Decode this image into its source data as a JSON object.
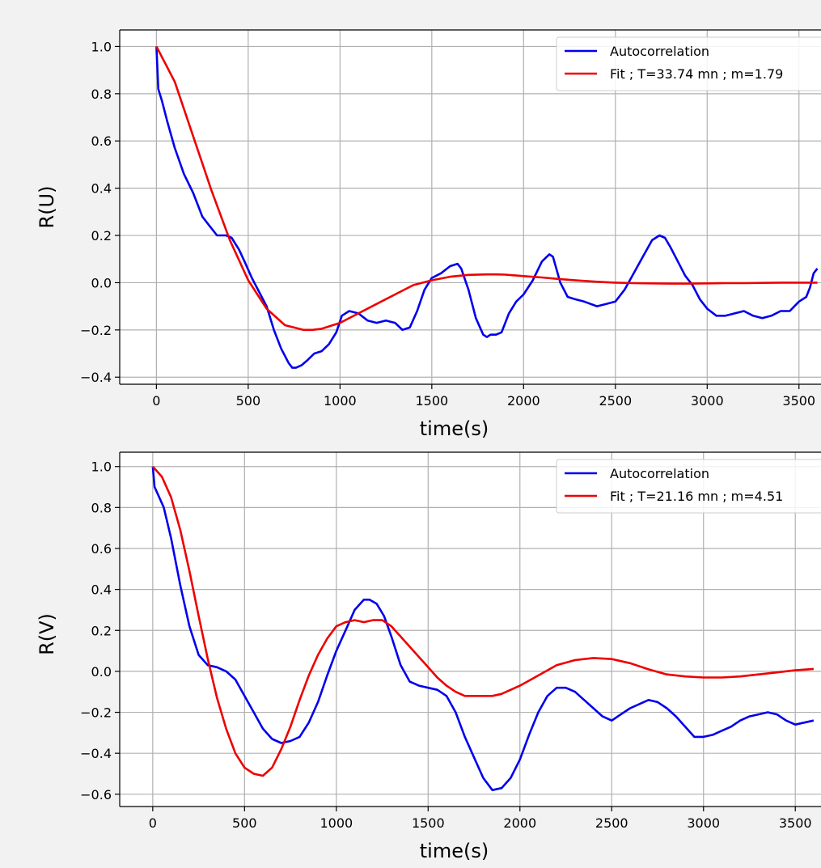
{
  "chart_data": [
    {
      "type": "line",
      "xlabel": "time(s)",
      "ylabel": "R(U)",
      "xlim": [
        -200,
        3620
      ],
      "ylim": [
        -0.43,
        1.07
      ],
      "xticks": [
        0,
        500,
        1000,
        1500,
        2000,
        2500,
        3000,
        3500
      ],
      "xtick_labels": [
        "0",
        "500",
        "1000",
        "1500",
        "2000",
        "2500",
        "3000",
        "3500"
      ],
      "yticks": [
        -0.4,
        -0.2,
        0.0,
        0.2,
        0.4,
        0.6,
        0.8,
        1.0
      ],
      "ytick_labels": [
        "−0.4",
        "−0.2",
        "0.0",
        "0.2",
        "0.4",
        "0.6",
        "0.8",
        "1.0"
      ],
      "grid": true,
      "legend_position": "top-right",
      "series": [
        {
          "name": "Autocorrelation",
          "color": "#0000ee",
          "x": [
            0,
            10,
            30,
            60,
            100,
            150,
            200,
            230,
            250,
            290,
            330,
            350,
            380,
            410,
            450,
            480,
            520,
            560,
            600,
            640,
            680,
            700,
            720,
            740,
            760,
            790,
            820,
            860,
            900,
            940,
            980,
            1010,
            1050,
            1100,
            1150,
            1200,
            1250,
            1300,
            1340,
            1380,
            1420,
            1460,
            1500,
            1550,
            1600,
            1640,
            1660,
            1700,
            1740,
            1780,
            1800,
            1820,
            1850,
            1880,
            1920,
            1960,
            2000,
            2050,
            2100,
            2140,
            2160,
            2200,
            2240,
            2280,
            2330,
            2400,
            2450,
            2500,
            2550,
            2600,
            2650,
            2700,
            2740,
            2770,
            2800,
            2840,
            2880,
            2920,
            2960,
            3000,
            3050,
            3100,
            3150,
            3200,
            3250,
            3300,
            3350,
            3400,
            3450,
            3500,
            3540,
            3560,
            3580,
            3600
          ],
          "y": [
            1.0,
            0.82,
            0.77,
            0.68,
            0.57,
            0.46,
            0.38,
            0.32,
            0.28,
            0.24,
            0.2,
            0.2,
            0.2,
            0.19,
            0.14,
            0.09,
            0.02,
            -0.04,
            -0.1,
            -0.2,
            -0.28,
            -0.31,
            -0.34,
            -0.36,
            -0.36,
            -0.35,
            -0.33,
            -0.3,
            -0.29,
            -0.26,
            -0.21,
            -0.14,
            -0.12,
            -0.13,
            -0.16,
            -0.17,
            -0.16,
            -0.17,
            -0.2,
            -0.19,
            -0.12,
            -0.03,
            0.02,
            0.04,
            0.07,
            0.08,
            0.06,
            -0.03,
            -0.15,
            -0.22,
            -0.23,
            -0.22,
            -0.22,
            -0.21,
            -0.13,
            -0.08,
            -0.05,
            0.01,
            0.09,
            0.12,
            0.11,
            0.0,
            -0.06,
            -0.07,
            -0.08,
            -0.1,
            -0.09,
            -0.08,
            -0.03,
            0.04,
            0.11,
            0.18,
            0.2,
            0.19,
            0.15,
            0.09,
            0.03,
            -0.01,
            -0.07,
            -0.11,
            -0.14,
            -0.14,
            -0.13,
            -0.12,
            -0.14,
            -0.15,
            -0.14,
            -0.12,
            -0.12,
            -0.08,
            -0.06,
            -0.02,
            0.04,
            0.06
          ]
        },
        {
          "name": "Fit ; T=33.74 mn ; m=1.79",
          "color": "#ee0000",
          "x": [
            0,
            100,
            200,
            300,
            400,
            500,
            600,
            700,
            800,
            850,
            900,
            1000,
            1100,
            1200,
            1300,
            1400,
            1500,
            1600,
            1700,
            1800,
            1850,
            1900,
            2000,
            2100,
            2200,
            2300,
            2400,
            2500,
            2600,
            2700,
            2800,
            2900,
            3000,
            3100,
            3200,
            3300,
            3400,
            3500,
            3600
          ],
          "y": [
            1.0,
            0.85,
            0.62,
            0.39,
            0.18,
            0.01,
            -0.11,
            -0.18,
            -0.2,
            -0.2,
            -0.195,
            -0.17,
            -0.13,
            -0.09,
            -0.05,
            -0.01,
            0.01,
            0.025,
            0.033,
            0.035,
            0.035,
            0.034,
            0.028,
            0.022,
            0.015,
            0.009,
            0.004,
            0.0,
            -0.002,
            -0.003,
            -0.004,
            -0.004,
            -0.003,
            -0.002,
            -0.002,
            -0.001,
            0.0,
            0.0,
            0.0
          ]
        }
      ]
    },
    {
      "type": "line",
      "xlabel": "time(s)",
      "ylabel": "R(V)",
      "xlim": [
        -180,
        3640
      ],
      "ylim": [
        -0.66,
        1.07
      ],
      "xticks": [
        0,
        500,
        1000,
        1500,
        2000,
        2500,
        3000,
        3500
      ],
      "xtick_labels": [
        "0",
        "500",
        "1000",
        "1500",
        "2000",
        "2500",
        "3000",
        "3500"
      ],
      "yticks": [
        -0.6,
        -0.4,
        -0.2,
        0.0,
        0.2,
        0.4,
        0.6,
        0.8,
        1.0
      ],
      "ytick_labels": [
        "−0.6",
        "−0.4",
        "−0.2",
        "0.0",
        "0.2",
        "0.4",
        "0.6",
        "0.8",
        "1.0"
      ],
      "grid": true,
      "legend_position": "top-right",
      "series": [
        {
          "name": "Autocorrelation",
          "color": "#0000ee",
          "x": [
            0,
            10,
            30,
            60,
            100,
            150,
            200,
            250,
            300,
            350,
            400,
            450,
            500,
            550,
            600,
            650,
            700,
            750,
            800,
            850,
            900,
            950,
            1000,
            1050,
            1100,
            1150,
            1180,
            1220,
            1260,
            1300,
            1350,
            1400,
            1450,
            1500,
            1550,
            1600,
            1650,
            1700,
            1750,
            1800,
            1850,
            1900,
            1950,
            2000,
            2050,
            2100,
            2150,
            2200,
            2250,
            2300,
            2350,
            2400,
            2450,
            2500,
            2550,
            2600,
            2650,
            2700,
            2750,
            2800,
            2850,
            2900,
            2950,
            3000,
            3050,
            3100,
            3150,
            3200,
            3250,
            3300,
            3350,
            3400,
            3450,
            3500,
            3550,
            3600
          ],
          "y": [
            1.0,
            0.9,
            0.86,
            0.8,
            0.65,
            0.42,
            0.22,
            0.08,
            0.03,
            0.02,
            0.0,
            -0.04,
            -0.12,
            -0.2,
            -0.28,
            -0.33,
            -0.35,
            -0.34,
            -0.32,
            -0.25,
            -0.15,
            -0.02,
            0.1,
            0.2,
            0.3,
            0.35,
            0.35,
            0.33,
            0.27,
            0.17,
            0.03,
            -0.05,
            -0.07,
            -0.08,
            -0.09,
            -0.12,
            -0.2,
            -0.32,
            -0.42,
            -0.52,
            -0.58,
            -0.57,
            -0.52,
            -0.43,
            -0.31,
            -0.2,
            -0.12,
            -0.08,
            -0.08,
            -0.1,
            -0.14,
            -0.18,
            -0.22,
            -0.24,
            -0.21,
            -0.18,
            -0.16,
            -0.14,
            -0.15,
            -0.18,
            -0.22,
            -0.27,
            -0.32,
            -0.32,
            -0.31,
            -0.29,
            -0.27,
            -0.24,
            -0.22,
            -0.21,
            -0.2,
            -0.21,
            -0.24,
            -0.26,
            -0.25,
            -0.24
          ]
        },
        {
          "name": "Fit ; T=21.16 mn ; m=4.51",
          "color": "#ee0000",
          "x": [
            0,
            50,
            100,
            150,
            200,
            250,
            300,
            350,
            400,
            450,
            500,
            550,
            600,
            650,
            700,
            750,
            800,
            850,
            900,
            950,
            1000,
            1050,
            1100,
            1150,
            1200,
            1250,
            1300,
            1350,
            1400,
            1450,
            1500,
            1550,
            1600,
            1650,
            1700,
            1750,
            1800,
            1850,
            1900,
            1950,
            2000,
            2100,
            2200,
            2300,
            2400,
            2500,
            2600,
            2700,
            2800,
            2900,
            3000,
            3100,
            3200,
            3300,
            3400,
            3500,
            3600
          ],
          "y": [
            1.0,
            0.95,
            0.85,
            0.69,
            0.49,
            0.27,
            0.06,
            -0.13,
            -0.28,
            -0.4,
            -0.47,
            -0.5,
            -0.51,
            -0.47,
            -0.38,
            -0.27,
            -0.14,
            -0.02,
            0.08,
            0.16,
            0.22,
            0.24,
            0.25,
            0.24,
            0.25,
            0.25,
            0.22,
            0.17,
            0.12,
            0.07,
            0.02,
            -0.03,
            -0.07,
            -0.1,
            -0.12,
            -0.12,
            -0.12,
            -0.12,
            -0.11,
            -0.09,
            -0.07,
            -0.02,
            0.03,
            0.055,
            0.065,
            0.06,
            0.04,
            0.01,
            -0.015,
            -0.025,
            -0.03,
            -0.03,
            -0.025,
            -0.015,
            -0.005,
            0.005,
            0.012
          ]
        }
      ]
    }
  ]
}
